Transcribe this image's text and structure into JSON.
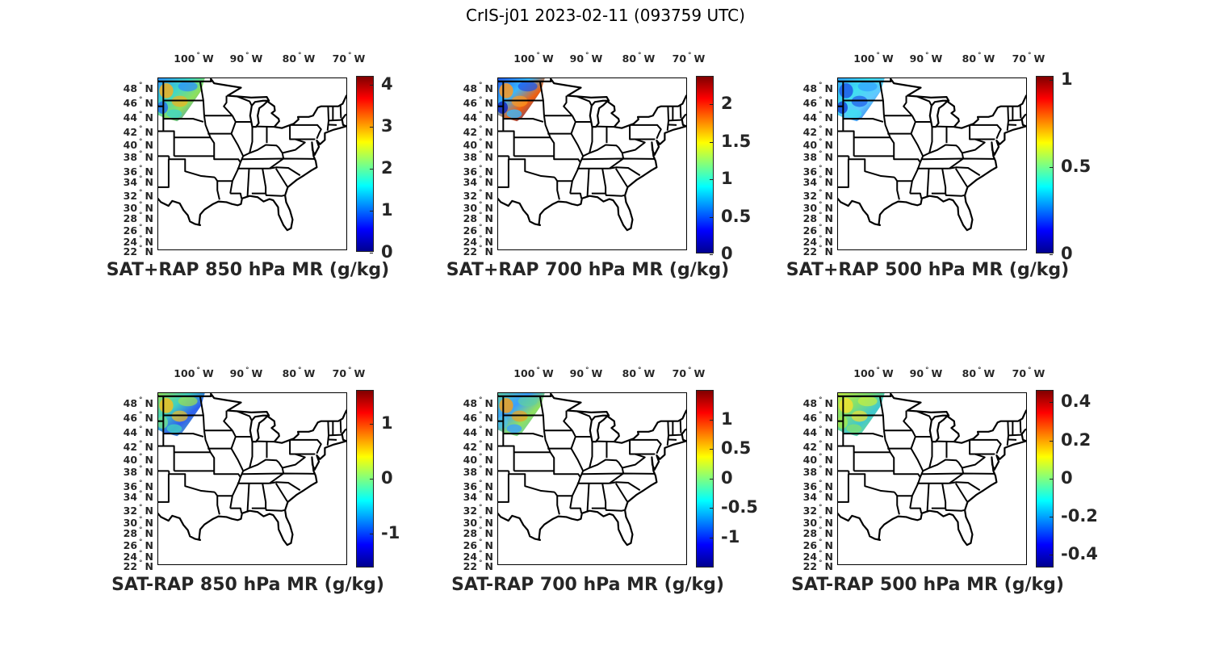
{
  "title": "CrIS-j01 2023-02-11 (093759 UTC)",
  "lon_labels": [
    {
      "value": "100",
      "hemi": "W"
    },
    {
      "value": "90",
      "hemi": "W"
    },
    {
      "value": "80",
      "hemi": "W"
    },
    {
      "value": "70",
      "hemi": "W"
    }
  ],
  "lat_labels": [
    "48",
    "46",
    "44",
    "42",
    "40",
    "38",
    "36",
    "34",
    "32",
    "30",
    "28",
    "26",
    "24",
    "22"
  ],
  "lat_hemi": "N",
  "colormap": "jet",
  "panels": [
    {
      "title": "SAT+RAP 850 hPa MR (g/kg)",
      "clim": [
        0,
        4.2
      ],
      "ticks": [
        "0",
        "1",
        "2",
        "3",
        "4"
      ],
      "tick_values": [
        0,
        1,
        2,
        3,
        4
      ],
      "swath_colors": [
        "#2b8cff",
        "#3fd6c8",
        "#f2b020",
        "#8fe05a",
        "#1f6cf0"
      ]
    },
    {
      "title": "SAT+RAP 700 hPa MR (g/kg)",
      "clim": [
        0,
        2.37
      ],
      "ticks": [
        "0",
        "0.5",
        "1",
        "1.5",
        "2"
      ],
      "tick_values": [
        0,
        0.5,
        1,
        1.5,
        2
      ],
      "swath_colors": [
        "#1e50e8",
        "#38b8ff",
        "#ff9a20",
        "#f06010",
        "#0a20c0"
      ]
    },
    {
      "title": "SAT+RAP 500 hPa MR (g/kg)",
      "clim": [
        0,
        1.02
      ],
      "ticks": [
        "0",
        "0.5",
        "1"
      ],
      "tick_values": [
        0,
        0.5,
        1
      ],
      "swath_colors": [
        "#30a0ff",
        "#3fe0f0",
        "#1e5ae8",
        "#60c8ff",
        "#1040d8"
      ]
    },
    {
      "title": "SAT-RAP 850 hPa MR (g/kg)",
      "clim": [
        -1.63,
        1.6
      ],
      "ticks": [
        "-1",
        "0",
        "1"
      ],
      "tick_values": [
        -1,
        0,
        1
      ],
      "swath_colors": [
        "#9be050",
        "#40d0c0",
        "#f0c020",
        "#3060f0",
        "#70e090"
      ]
    },
    {
      "title": "SAT-RAP 700 hPa MR (g/kg)",
      "clim": [
        -1.52,
        1.49
      ],
      "ticks": [
        "-1",
        "-0.5",
        "0",
        "0.5",
        "1"
      ],
      "tick_values": [
        -1,
        -0.5,
        0,
        0.5,
        1
      ],
      "swath_colors": [
        "#60d0a0",
        "#3aa0ff",
        "#f0a020",
        "#90e060",
        "#50c0e0"
      ]
    },
    {
      "title": "SAT-RAP 500 hPa MR (g/kg)",
      "clim": [
        -0.47,
        0.46
      ],
      "ticks": [
        "0.4",
        "0.2",
        "0",
        "-0.2",
        "-0.4"
      ],
      "tick_values": [
        0.4,
        0.2,
        0,
        -0.2,
        -0.4
      ],
      "swath_colors": [
        "#c8f040",
        "#80e070",
        "#f0e030",
        "#40c8d0",
        "#a0e850"
      ]
    }
  ]
}
